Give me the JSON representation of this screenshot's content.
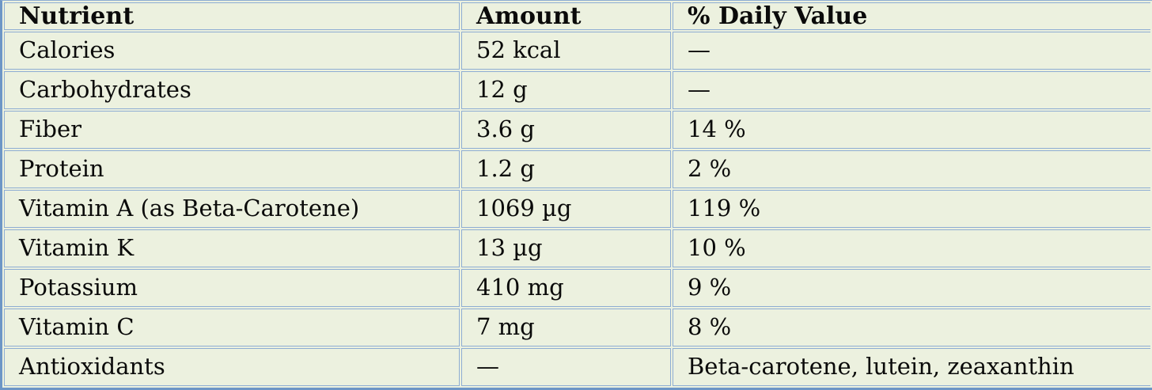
{
  "table": {
    "title": "nutrition-facts-table",
    "columns": [
      {
        "key": "nutrient",
        "label": "Nutrient"
      },
      {
        "key": "amount",
        "label": "Amount"
      },
      {
        "key": "daily_value",
        "label": "% Daily Value"
      }
    ],
    "rows": [
      {
        "nutrient": "Calories",
        "amount": "52 kcal",
        "daily_value": "—"
      },
      {
        "nutrient": "Carbohydrates",
        "amount": "12 g",
        "daily_value": "—"
      },
      {
        "nutrient": "Fiber",
        "amount": "3.6 g",
        "daily_value": "14 %"
      },
      {
        "nutrient": "Protein",
        "amount": "1.2 g",
        "daily_value": "2 %"
      },
      {
        "nutrient": "Vitamin A (as Beta-Carotene)",
        "amount": "1069 µg",
        "daily_value": "119 %"
      },
      {
        "nutrient": "Vitamin K",
        "amount": "13 µg",
        "daily_value": "10 %"
      },
      {
        "nutrient": "Potassium",
        "amount": "410 mg",
        "daily_value": "9 %"
      },
      {
        "nutrient": "Vitamin C",
        "amount": "7 mg",
        "daily_value": "8 %"
      },
      {
        "nutrient": "Antioxidants",
        "amount": "—",
        "daily_value": "Beta-carotene, lutein, zeaxanthin"
      }
    ]
  },
  "colors": {
    "cell_background": "#ECF1DF",
    "grid_border": "#8EADD3",
    "outer_border": "#6D96C6",
    "text": "#0A0A0A"
  }
}
